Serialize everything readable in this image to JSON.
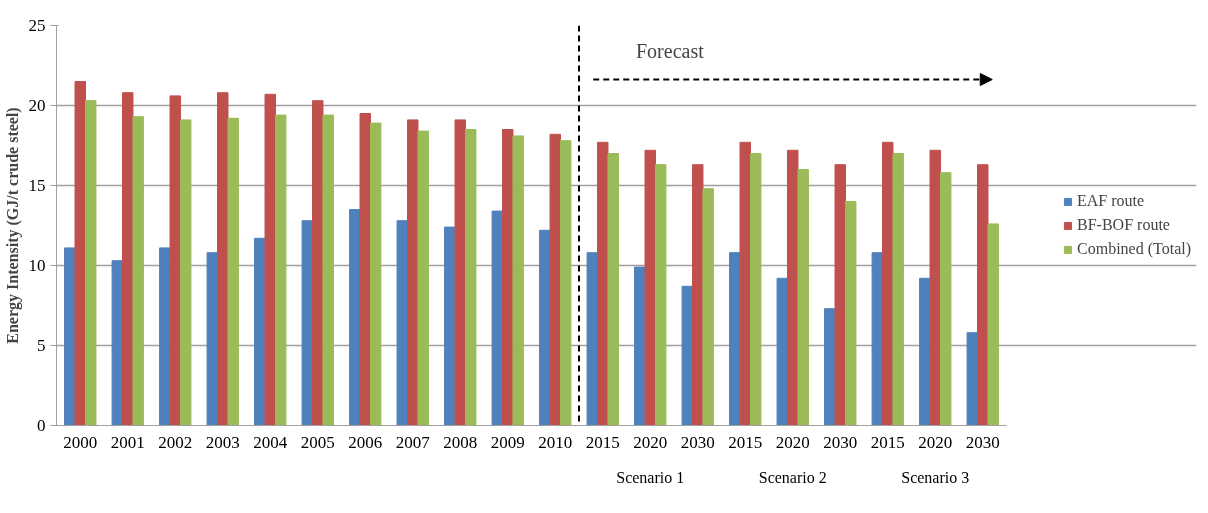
{
  "chart_data": {
    "type": "bar",
    "ylabel": "Energy Intensity (GJ/t crude steel)",
    "categories": [
      "2000",
      "2001",
      "2002",
      "2003",
      "2004",
      "2005",
      "2006",
      "2007",
      "2008",
      "2009",
      "2010",
      "2015",
      "2020",
      "2030",
      "2015",
      "2020",
      "2030",
      "2015",
      "2020",
      "2030"
    ],
    "series": [
      {
        "name": "EAF route",
        "color": "#4f81bd",
        "values": [
          11.1,
          10.3,
          11.1,
          10.8,
          11.7,
          12.8,
          13.5,
          12.8,
          12.4,
          13.4,
          12.2,
          10.8,
          9.9,
          8.7,
          10.8,
          9.2,
          7.3,
          10.8,
          9.2,
          5.8
        ]
      },
      {
        "name": "BF-BOF route",
        "color": "#c0504d",
        "values": [
          21.5,
          20.8,
          20.6,
          20.8,
          20.7,
          20.3,
          19.5,
          19.1,
          19.1,
          18.5,
          18.2,
          17.7,
          17.2,
          16.3,
          17.7,
          17.2,
          16.3,
          17.7,
          17.2,
          16.3
        ]
      },
      {
        "name": "Combined (Total)",
        "color": "#9bbb59",
        "values": [
          20.3,
          19.3,
          19.1,
          19.2,
          19.4,
          19.4,
          18.9,
          18.4,
          18.5,
          18.1,
          17.8,
          17.0,
          16.3,
          14.8,
          17.0,
          16.0,
          14.0,
          17.0,
          15.8,
          12.6
        ]
      }
    ],
    "ylim": [
      0,
      25
    ],
    "yticks": [
      0,
      5,
      10,
      15,
      20,
      25
    ],
    "grid": "y",
    "legend": "right",
    "ref_lines": [
      {
        "axis": "x",
        "value": "2015",
        "label": "Forecast",
        "line_style": "dashed",
        "color": "#000000"
      }
    ],
    "annotations": [
      "Scenario 1",
      "Scenario 2",
      "Scenario 3"
    ]
  }
}
